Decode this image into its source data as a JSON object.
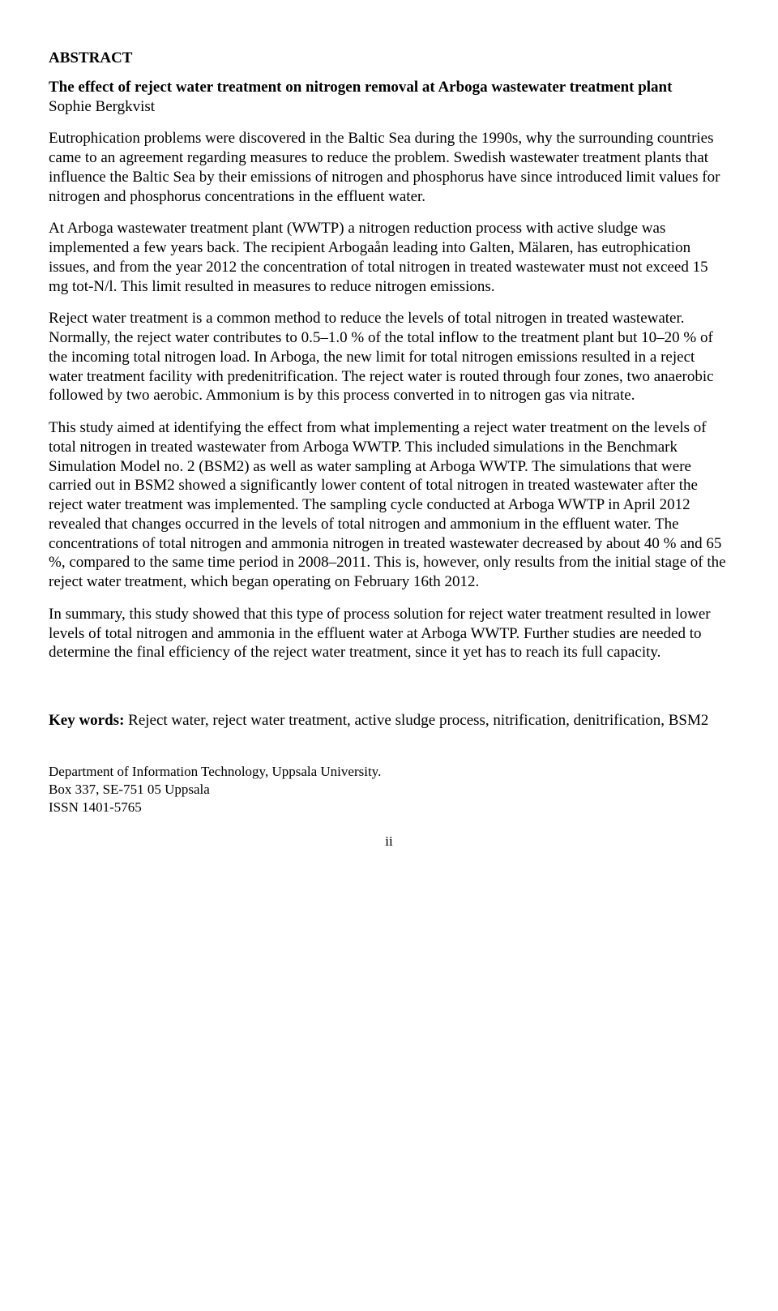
{
  "heading": "ABSTRACT",
  "title": "The effect of reject water treatment on nitrogen removal at Arboga wastewater treatment plant",
  "author": "Sophie Bergkvist",
  "paragraphs": {
    "p1": "Eutrophication problems were discovered in the Baltic Sea during the 1990s, why the surrounding countries came to an agreement regarding measures to reduce the problem. Swedish wastewater treatment plants that influence the Baltic Sea by their emissions of nitrogen and phosphorus have since introduced limit values for nitrogen and phosphorus concentrations in the effluent water.",
    "p2": "At Arboga wastewater treatment plant (WWTP) a nitrogen reduction process with active sludge was implemented a few years back. The recipient Arbogaån leading into Galten, Mälaren, has eutrophication issues, and from the year 2012 the concentration of total nitrogen in treated wastewater must not exceed 15 mg tot-N/l. This limit resulted in measures to reduce nitrogen emissions.",
    "p3": "Reject water treatment is a common method to reduce the levels of total nitrogen in treated wastewater. Normally, the reject water contributes to 0.5–1.0 % of the total inflow to the treatment plant but 10–20 % of the incoming total nitrogen load. In Arboga, the new limit for total nitrogen emissions resulted in a reject water treatment facility with predenitrification. The reject water is routed through four zones, two anaerobic followed by two aerobic. Ammonium is by this process converted in to nitrogen gas via nitrate.",
    "p4": "This study aimed at identifying the effect from what implementing a reject water treatment on the levels of total nitrogen in treated wastewater from Arboga WWTP. This included simulations in the Benchmark Simulation Model no. 2 (BSM2) as well as water sampling at Arboga WWTP. The simulations that were carried out in BSM2 showed a significantly lower content of total nitrogen in treated wastewater after the reject water treatment was implemented. The sampling cycle conducted at Arboga WWTP in April 2012 revealed that changes occurred in the levels of total nitrogen and ammonium in the effluent water. The concentrations of total nitrogen and ammonia nitrogen in treated wastewater decreased by about 40 % and 65 %, compared to the same time period in 2008–2011. This is, however, only results from the initial stage of the reject water treatment, which began operating on February 16th 2012.",
    "p5": "In summary, this study showed that this type of process solution for reject water treatment resulted in lower levels of total nitrogen and ammonia in the effluent water at Arboga WWTP. Further studies are needed to determine the final efficiency of the reject water treatment, since it yet has to reach its full capacity."
  },
  "keywords_label": "Key words:",
  "keywords_text": " Reject water, reject water treatment, active sludge process, nitrification, denitrification, BSM2",
  "dept": {
    "line1": "Department of Information Technology, Uppsala University.",
    "line2": "Box 337, SE-751 05 Uppsala",
    "line3": "ISSN 1401-5765"
  },
  "page_number": "ii"
}
